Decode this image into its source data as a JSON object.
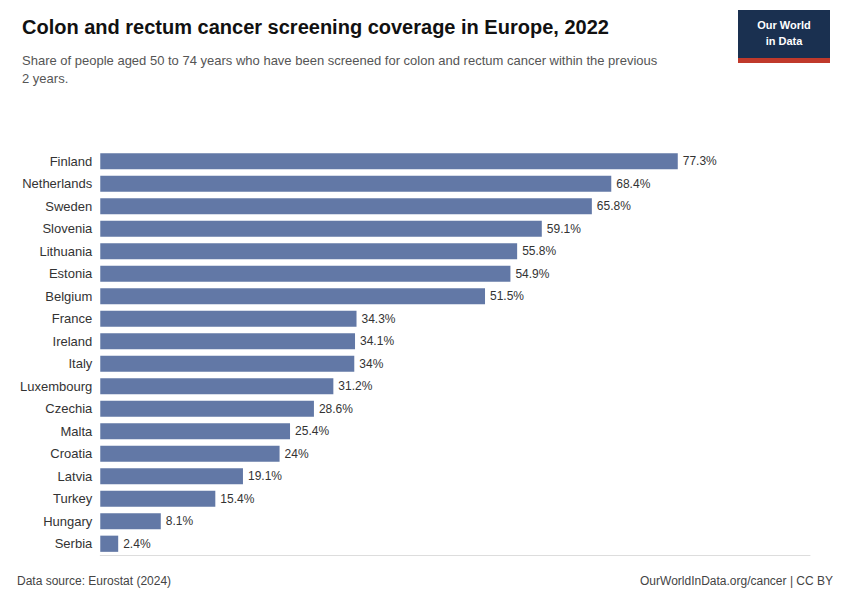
{
  "chart_data": {
    "type": "bar",
    "orientation": "horizontal",
    "title": "Colon and rectum cancer screening coverage in Europe, 2022",
    "subtitle": "Share of people aged 50 to 74 years who have been screened for colon and rectum cancer within the previous\n2 years.",
    "annotations": [
      "Data source: Eurostat (2024)",
      "OurWorldInData.org/cancer | CC BY",
      "Our World",
      "in Data"
    ],
    "categories": [
      "Finland",
      "Netherlands",
      "Sweden",
      "Slovenia",
      "Lithuania",
      "Estonia",
      "Belgium",
      "France",
      "Ireland",
      "Italy",
      "Luxembourg",
      "Czechia",
      "Malta",
      "Croatia",
      "Latvia",
      "Turkey",
      "Hungary",
      "Serbia"
    ],
    "values": [
      77.3,
      68.4,
      65.8,
      59.1,
      55.8,
      54.9,
      51.5,
      34.3,
      34.1,
      34.0,
      31.2,
      28.6,
      25.4,
      24.0,
      19.1,
      15.4,
      8.1,
      2.4
    ],
    "value_labels": [
      "77.3%",
      "68.4%",
      "65.8%",
      "59.1%",
      "55.8%",
      "54.9%",
      "51.5%",
      "34.3%",
      "34.1%",
      "34%",
      "31.2%",
      "28.6%",
      "25.4%",
      "24%",
      "19.1%",
      "15.4%",
      "8.1%",
      "2.4%"
    ],
    "color": "#6278a6",
    "xlim": [
      0,
      95
    ],
    "data_labels": true,
    "tick_labels": "y",
    "grid": false
  }
}
